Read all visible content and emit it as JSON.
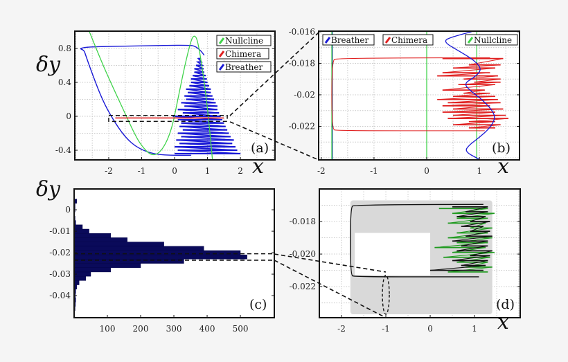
{
  "colors": {
    "nullcline": "#3fd34a",
    "chimera": "#e02020",
    "breather": "#1a1ad6",
    "histogram": "#0a0a5a",
    "d_black": "#111111",
    "d_green": "#1f9a1f",
    "d_band": "#d9d9d9"
  },
  "chart_data": [
    {
      "panel": "(a)",
      "type": "line",
      "xlabel": "x",
      "ylabel": "δy",
      "grid": true,
      "xlim": [
        -3.03,
        3.05
      ],
      "ylim": [
        -0.514,
        1.004
      ],
      "xticks": [
        -2,
        -1,
        0,
        1,
        2
      ],
      "xtick_labels": [
        "-2",
        "-1",
        "0",
        "1",
        "2"
      ],
      "yticks": [
        -0.4,
        0,
        0.4,
        0.8
      ],
      "ytick_labels": [
        "-0.4",
        "0",
        "0.4",
        "0.8"
      ],
      "legend": {
        "position": "top-right",
        "entries": [
          "Nullcline",
          "Chimera",
          "Breather"
        ]
      },
      "nullcline": [
        [
          -2.6,
          1.01
        ],
        [
          -2.3,
          0.72
        ],
        [
          -2,
          0.45
        ],
        [
          -1.5,
          0.03
        ],
        [
          -1.2,
          -0.22
        ],
        [
          -1,
          -0.35
        ],
        [
          -0.7,
          -0.47
        ],
        [
          -0.4,
          -0.42
        ],
        [
          -0.1,
          -0.18
        ],
        [
          0.1,
          0.2
        ],
        [
          0.3,
          0.58
        ],
        [
          0.5,
          0.9
        ],
        [
          0.6,
          0.96
        ],
        [
          0.7,
          0.9
        ],
        [
          0.85,
          0.55
        ],
        [
          1.0,
          0.1
        ],
        [
          1.15,
          -0.51
        ]
      ],
      "breather_outline": [
        [
          0.9,
          0.72
        ],
        [
          0.7,
          0.83
        ],
        [
          0.3,
          0.84
        ],
        [
          -1,
          0.83
        ],
        [
          -2.6,
          0.82
        ],
        [
          -2.9,
          0.8
        ],
        [
          -2.75,
          0.78
        ],
        [
          -2.7,
          0.72
        ],
        [
          -2.5,
          0.5
        ],
        [
          -2.2,
          0.2
        ],
        [
          -1.9,
          -0.02
        ],
        [
          -1.5,
          -0.25
        ],
        [
          -1.1,
          -0.38
        ],
        [
          -0.6,
          -0.45
        ],
        [
          0,
          -0.46
        ],
        [
          0.5,
          -0.46
        ]
      ],
      "breather_spikes": [
        [
          -0.44,
          0.0,
          2.0
        ],
        [
          -0.4,
          0.1,
          1.9
        ],
        [
          -0.36,
          0.0,
          1.85
        ],
        [
          -0.32,
          0.15,
          1.75
        ],
        [
          -0.28,
          0.05,
          1.8
        ],
        [
          -0.24,
          0.2,
          1.7
        ],
        [
          -0.2,
          0.1,
          1.65
        ],
        [
          -0.16,
          0.25,
          1.6
        ],
        [
          -0.12,
          0.15,
          1.55
        ],
        [
          -0.08,
          0.2,
          1.5
        ],
        [
          -0.04,
          0.1,
          1.45
        ],
        [
          0.0,
          -0.05,
          1.4
        ],
        [
          0.04,
          0.25,
          1.35
        ],
        [
          0.08,
          0.1,
          1.3
        ],
        [
          0.12,
          0.3,
          1.3
        ],
        [
          0.16,
          0.2,
          1.25
        ],
        [
          0.2,
          0.35,
          1.2
        ],
        [
          0.24,
          0.3,
          1.15
        ],
        [
          0.28,
          0.4,
          1.1
        ],
        [
          0.32,
          0.35,
          1.1
        ],
        [
          0.36,
          0.45,
          1.05
        ],
        [
          0.4,
          0.5,
          1.0
        ],
        [
          0.44,
          0.5,
          0.98
        ],
        [
          0.48,
          0.55,
          0.95
        ],
        [
          0.52,
          0.6,
          0.9
        ],
        [
          0.56,
          0.6,
          0.88
        ],
        [
          0.6,
          0.65,
          0.85
        ],
        [
          0.64,
          0.7,
          0.82
        ],
        [
          0.68,
          0.72,
          0.8
        ]
      ],
      "chimera": [
        [
          -1.8,
          -0.02
        ],
        [
          1.5,
          -0.02
        ]
      ],
      "zoom_box": {
        "x": [
          -2,
          1.6
        ],
        "y": [
          -0.06,
          0.01
        ]
      }
    },
    {
      "panel": "(b)",
      "type": "line",
      "xlabel": "x",
      "grid": true,
      "xlim": [
        -2.05,
        1.76
      ],
      "ylim": [
        -0.02413,
        -0.01596
      ],
      "xticks": [
        -2,
        -1,
        0,
        1
      ],
      "xtick_labels": [
        "-2",
        "-1",
        "0",
        "1"
      ],
      "yticks": [
        -0.016,
        -0.018,
        -0.02,
        -0.022
      ],
      "ytick_labels": [
        "-0.016",
        "-0.018",
        "-0.02",
        "-0.022"
      ],
      "legend": {
        "position": "top",
        "entries": [
          "Breather",
          "Chimera",
          "Nullcline"
        ]
      },
      "nullcline_x": [
        -1.8,
        0,
        0.95
      ],
      "breather_vertical_x": -1.8,
      "breather": [
        [
          0.85,
          -0.016
        ],
        [
          0.5,
          -0.0163
        ],
        [
          0.3,
          -0.0166
        ],
        [
          0.6,
          -0.0172
        ],
        [
          0.9,
          -0.0178
        ],
        [
          1.05,
          -0.0184
        ],
        [
          0.9,
          -0.0189
        ],
        [
          0.7,
          -0.0193
        ],
        [
          0.85,
          -0.0198
        ],
        [
          1.05,
          -0.0203
        ],
        [
          1.25,
          -0.021
        ],
        [
          1.3,
          -0.0215
        ],
        [
          1.2,
          -0.0221
        ],
        [
          1.0,
          -0.0227
        ],
        [
          0.8,
          -0.0232
        ],
        [
          0.72,
          -0.0236
        ],
        [
          1.0,
          -0.0241
        ]
      ],
      "chimera_frame": [
        [
          1.2,
          -0.01765
        ],
        [
          -1.7,
          -0.01765
        ],
        [
          -1.8,
          -0.01785
        ],
        [
          -1.8,
          -0.02218
        ],
        [
          -1.7,
          -0.02228
        ],
        [
          1.1,
          -0.02228
        ]
      ],
      "chimera_spikes": [
        [
          -0.0177,
          0.3,
          1.45
        ],
        [
          -0.0181,
          0.8,
          1.4
        ],
        [
          -0.0183,
          0.5,
          1.3
        ],
        [
          -0.0186,
          0.3,
          1.2
        ],
        [
          -0.0188,
          0.2,
          1.35
        ],
        [
          -0.019,
          0.7,
          1.4
        ],
        [
          -0.0192,
          0.9,
          1.4
        ],
        [
          -0.01935,
          0.6,
          1.3
        ],
        [
          -0.0197,
          0.3,
          1.1
        ],
        [
          -0.0199,
          0.7,
          1.2
        ],
        [
          -0.0201,
          0.5,
          1.3
        ],
        [
          -0.0203,
          0.2,
          1.35
        ],
        [
          -0.0205,
          0.4,
          1.4
        ],
        [
          -0.0207,
          0.3,
          1.2
        ],
        [
          -0.0209,
          0.5,
          1.45
        ],
        [
          -0.0211,
          0.3,
          1.3
        ],
        [
          -0.0213,
          0.5,
          1.5
        ],
        [
          -0.0215,
          0.4,
          1.55
        ],
        [
          -0.0217,
          0.8,
          1.3
        ],
        [
          -0.0219,
          0.5,
          1.4
        ],
        [
          -0.0221,
          0.8,
          1.3
        ]
      ]
    },
    {
      "panel": "(c)",
      "type": "bar",
      "orientation": "horizontal",
      "ylabel": "δy",
      "grid": false,
      "xlim": [
        0,
        602
      ],
      "ylim": [
        -0.0503,
        0.0097
      ],
      "xticks": [
        100,
        200,
        300,
        400,
        500
      ],
      "xtick_labels": [
        "100",
        "200",
        "300",
        "400",
        "500"
      ],
      "yticks": [
        0,
        -0.01,
        -0.02,
        -0.03,
        -0.04
      ],
      "ytick_labels": [
        "0",
        "-0.01",
        "-0.02",
        "-0.03",
        "-0.04"
      ],
      "bin_width": 0.002,
      "bins": [
        0.004,
        0.002,
        0,
        -0.002,
        -0.004,
        -0.006,
        -0.008,
        -0.01,
        -0.012,
        -0.014,
        -0.016,
        -0.018,
        -0.02,
        -0.022,
        -0.024,
        -0.026,
        -0.028,
        -0.03,
        -0.032,
        -0.034,
        -0.036,
        -0.038,
        -0.04,
        -0.042,
        -0.044,
        -0.046
      ],
      "counts": [
        8,
        3,
        3,
        2,
        3,
        5,
        25,
        45,
        110,
        160,
        270,
        390,
        500,
        520,
        330,
        200,
        110,
        50,
        35,
        15,
        8,
        5,
        4,
        5,
        4,
        3
      ],
      "zoom_band": [
        -0.0235,
        -0.0205
      ]
    },
    {
      "panel": "(d)",
      "type": "line",
      "xlabel": "x",
      "grid": true,
      "xlim": [
        -2.5,
        2.03
      ],
      "ylim": [
        -0.02391,
        -0.016
      ],
      "xticks": [
        -2,
        -1,
        0,
        1
      ],
      "xtick_labels": [
        "-2",
        "-1",
        "0",
        "1"
      ],
      "yticks": [
        -0.018,
        -0.02,
        -0.022
      ],
      "ytick_labels": [
        "-0.018",
        "-0.020",
        "-0.022"
      ],
      "band": {
        "x": [
          -1.8,
          1.4
        ],
        "y": [
          -0.0237,
          -0.0167
        ]
      },
      "frame": [
        [
          1.2,
          -0.01695
        ],
        [
          -1.7,
          -0.01695
        ],
        [
          -1.8,
          -0.01715
        ],
        [
          -1.8,
          -0.02128
        ],
        [
          -1.7,
          -0.0214
        ],
        [
          1.1,
          -0.0214
        ]
      ],
      "black_spikes": [
        [
          -0.0171,
          0.5,
          1.3
        ],
        [
          -0.0174,
          0.8,
          1.3
        ],
        [
          -0.0177,
          0.6,
          1.25
        ],
        [
          -0.018,
          0.9,
          1.35
        ],
        [
          -0.0183,
          0.7,
          1.2
        ],
        [
          -0.0186,
          0.9,
          1.35
        ],
        [
          -0.0189,
          0.8,
          1.4
        ],
        [
          -0.0192,
          0.5,
          1.3
        ],
        [
          -0.0195,
          0.7,
          1.3
        ],
        [
          -0.0198,
          0.6,
          1.4
        ],
        [
          -0.0201,
          0.9,
          1.35
        ],
        [
          -0.0204,
          0.5,
          1.3
        ],
        [
          -0.0207,
          0.7,
          1.25
        ],
        [
          -0.021,
          0.0,
          1.2
        ]
      ],
      "green_spikes": [
        [
          -0.0172,
          0.2,
          1.3
        ],
        [
          -0.0175,
          0.5,
          1.45
        ],
        [
          -0.0178,
          0.6,
          1.3
        ],
        [
          -0.0181,
          0.4,
          1.25
        ],
        [
          -0.0184,
          0.9,
          1.4
        ],
        [
          -0.0187,
          0.6,
          1.3
        ],
        [
          -0.019,
          0.4,
          1.4
        ],
        [
          -0.0193,
          0.6,
          1.3
        ],
        [
          -0.0196,
          0.1,
          1.25
        ],
        [
          -0.0199,
          0.5,
          1.45
        ],
        [
          -0.0202,
          0.3,
          1.35
        ],
        [
          -0.0205,
          0.6,
          1.3
        ],
        [
          -0.0208,
          0.8,
          1.4
        ],
        [
          -0.0211,
          0.4,
          1.3
        ]
      ],
      "ellipse": {
        "x": -1,
        "y": [
          -0.0237,
          -0.0213
        ]
      }
    }
  ]
}
